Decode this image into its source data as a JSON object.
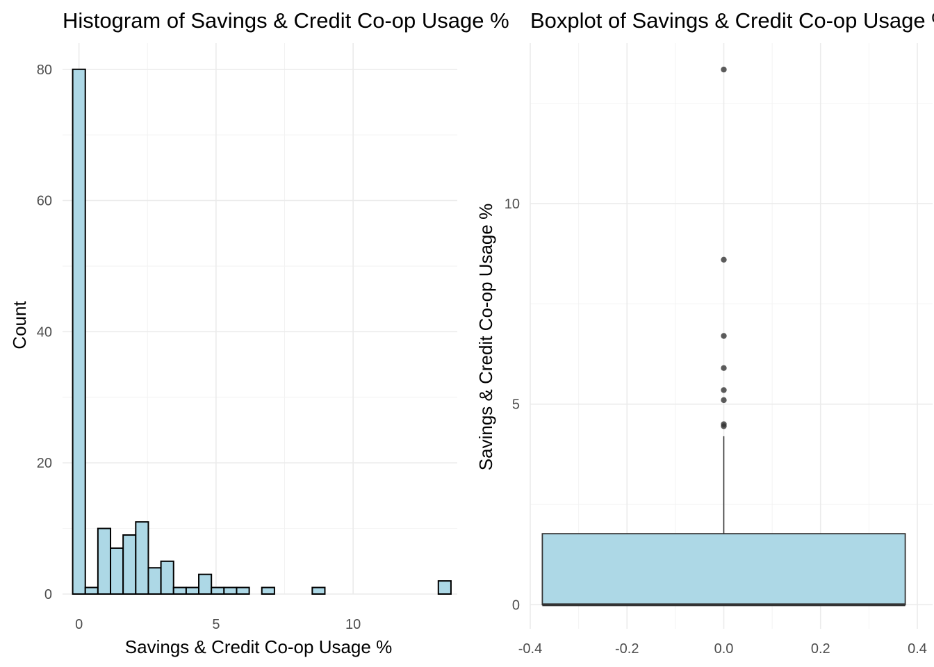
{
  "chart_data": [
    {
      "type": "histogram",
      "title": "Histogram of Savings & Credit Co-op Usage %",
      "xlabel": "Savings & Credit Co-op Usage %",
      "ylabel": "Count",
      "xlim": [
        -0.6,
        13.8
      ],
      "ylim": [
        0,
        84
      ],
      "x_ticks": [
        0,
        5,
        10
      ],
      "y_ticks": [
        0,
        20,
        40,
        60,
        80
      ],
      "bin_width": 0.46,
      "bins": [
        {
          "x": 0.0,
          "count": 80
        },
        {
          "x": 0.46,
          "count": 1
        },
        {
          "x": 0.92,
          "count": 10
        },
        {
          "x": 1.38,
          "count": 7
        },
        {
          "x": 1.84,
          "count": 9
        },
        {
          "x": 2.3,
          "count": 11
        },
        {
          "x": 2.76,
          "count": 4
        },
        {
          "x": 3.22,
          "count": 5
        },
        {
          "x": 3.68,
          "count": 1
        },
        {
          "x": 4.14,
          "count": 1
        },
        {
          "x": 4.6,
          "count": 3
        },
        {
          "x": 5.06,
          "count": 1
        },
        {
          "x": 5.52,
          "count": 1
        },
        {
          "x": 5.98,
          "count": 1
        },
        {
          "x": 6.44,
          "count": 0
        },
        {
          "x": 6.9,
          "count": 1
        },
        {
          "x": 7.36,
          "count": 0
        },
        {
          "x": 7.82,
          "count": 0
        },
        {
          "x": 8.28,
          "count": 0
        },
        {
          "x": 8.74,
          "count": 1
        },
        {
          "x": 9.2,
          "count": 0
        },
        {
          "x": 9.66,
          "count": 0
        },
        {
          "x": 10.12,
          "count": 0
        },
        {
          "x": 10.58,
          "count": 0
        },
        {
          "x": 11.04,
          "count": 0
        },
        {
          "x": 11.5,
          "count": 0
        },
        {
          "x": 11.96,
          "count": 0
        },
        {
          "x": 12.42,
          "count": 0
        },
        {
          "x": 12.88,
          "count": 0
        },
        {
          "x": 13.34,
          "count": 2
        }
      ],
      "fill_color": "#add8e6",
      "outline_color": "#000000",
      "grid": true
    },
    {
      "type": "boxplot",
      "title": "Boxplot of Savings & Credit Co-op Usage %",
      "xlabel": "",
      "ylabel": "Savings & Credit Co-op Usage %",
      "xlim": [
        -0.4,
        0.4
      ],
      "ylim": [
        -0.6,
        14.0
      ],
      "x_ticks": [
        -0.4,
        -0.2,
        0.0,
        0.2,
        0.4
      ],
      "x_tick_labels": [
        "-0.4",
        "-0.2",
        "0.0",
        "0.2",
        "0.4"
      ],
      "y_ticks": [
        0,
        5,
        10
      ],
      "box": {
        "center": 0.0,
        "half_width": 0.375,
        "q1": 0.0,
        "median": 0.0,
        "q3": 1.77,
        "whisker_low": 0.0,
        "whisker_high": 4.2
      },
      "outliers": [
        13.34,
        8.6,
        6.7,
        5.9,
        5.35,
        5.1,
        4.5,
        4.45
      ],
      "fill_color": "#add8e6",
      "outline_color": "#333333",
      "grid": true
    }
  ]
}
